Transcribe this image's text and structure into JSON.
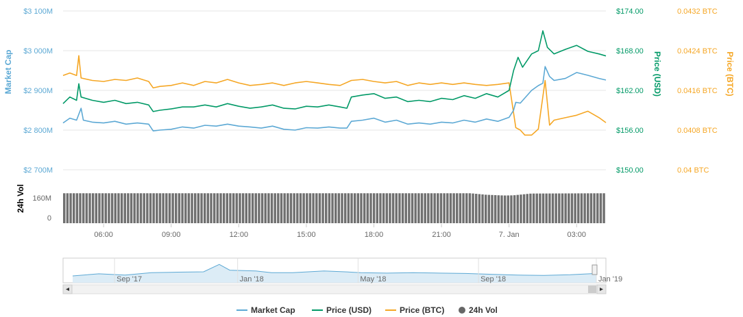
{
  "chart_data": {
    "type": "line",
    "axes": {
      "market_cap": {
        "title": "Market Cap",
        "ticks": [
          "$2 700M",
          "$2 800M",
          "$2 900M",
          "$3 000M",
          "$3 100M"
        ],
        "range": [
          2700,
          3100
        ],
        "color": "#5ba8d4"
      },
      "price_usd": {
        "title": "Price (USD)",
        "ticks": [
          "$150.00",
          "$156.00",
          "$162.00",
          "$168.00",
          "$174.00"
        ],
        "range": [
          150,
          174
        ],
        "color": "#009966"
      },
      "price_btc": {
        "title": "Price (BTC)",
        "ticks": [
          "0.04 BTC",
          "0.0408 BTC",
          "0.0416 BTC",
          "0.0424 BTC",
          "0.0432 BTC"
        ],
        "range": [
          0.04,
          0.0432
        ],
        "color": "#f5a623"
      },
      "volume": {
        "title": "24h Vol",
        "ticks": [
          "0",
          "160M"
        ],
        "range": [
          0,
          320
        ],
        "color": "#666666"
      }
    },
    "x_ticks": [
      "06:00",
      "09:00",
      "12:00",
      "15:00",
      "18:00",
      "21:00",
      "7. Jan",
      "03:00"
    ],
    "x_range": [
      4.2,
      28.3
    ],
    "series": [
      {
        "name": "Market Cap",
        "axis": "market_cap",
        "color": "#5ba8d4",
        "points": [
          [
            4.2,
            2818
          ],
          [
            4.5,
            2830
          ],
          [
            4.8,
            2825
          ],
          [
            5.0,
            2855
          ],
          [
            5.1,
            2825
          ],
          [
            5.5,
            2820
          ],
          [
            6.0,
            2818
          ],
          [
            6.5,
            2822
          ],
          [
            7.0,
            2815
          ],
          [
            7.5,
            2818
          ],
          [
            8.0,
            2815
          ],
          [
            8.2,
            2798
          ],
          [
            8.5,
            2800
          ],
          [
            9.0,
            2802
          ],
          [
            9.5,
            2808
          ],
          [
            10.0,
            2805
          ],
          [
            10.5,
            2812
          ],
          [
            11.0,
            2810
          ],
          [
            11.5,
            2815
          ],
          [
            12.0,
            2810
          ],
          [
            12.5,
            2808
          ],
          [
            13.0,
            2805
          ],
          [
            13.5,
            2810
          ],
          [
            14.0,
            2802
          ],
          [
            14.5,
            2800
          ],
          [
            15.0,
            2806
          ],
          [
            15.5,
            2805
          ],
          [
            16.0,
            2808
          ],
          [
            16.5,
            2805
          ],
          [
            16.8,
            2805
          ],
          [
            17.0,
            2822
          ],
          [
            17.5,
            2825
          ],
          [
            18.0,
            2830
          ],
          [
            18.5,
            2820
          ],
          [
            19.0,
            2825
          ],
          [
            19.5,
            2815
          ],
          [
            20.0,
            2818
          ],
          [
            20.5,
            2815
          ],
          [
            21.0,
            2820
          ],
          [
            21.5,
            2818
          ],
          [
            22.0,
            2825
          ],
          [
            22.5,
            2820
          ],
          [
            23.0,
            2828
          ],
          [
            23.5,
            2822
          ],
          [
            24.0,
            2832
          ],
          [
            24.2,
            2850
          ],
          [
            24.3,
            2870
          ],
          [
            24.5,
            2868
          ],
          [
            25.0,
            2900
          ],
          [
            25.3,
            2912
          ],
          [
            25.5,
            2918
          ],
          [
            25.6,
            2960
          ],
          [
            25.8,
            2935
          ],
          [
            26.0,
            2925
          ],
          [
            26.5,
            2930
          ],
          [
            27.0,
            2945
          ],
          [
            27.5,
            2938
          ],
          [
            28.0,
            2930
          ],
          [
            28.3,
            2926
          ]
        ]
      },
      {
        "name": "Price (USD)",
        "axis": "price_usd",
        "color": "#009966",
        "points": [
          [
            4.2,
            160.0
          ],
          [
            4.5,
            161.0
          ],
          [
            4.8,
            160.5
          ],
          [
            4.9,
            163.0
          ],
          [
            5.0,
            161.0
          ],
          [
            5.5,
            160.5
          ],
          [
            6.0,
            160.2
          ],
          [
            6.5,
            160.5
          ],
          [
            7.0,
            160.0
          ],
          [
            7.5,
            160.2
          ],
          [
            8.0,
            159.8
          ],
          [
            8.2,
            158.8
          ],
          [
            8.5,
            159.0
          ],
          [
            9.0,
            159.2
          ],
          [
            9.5,
            159.5
          ],
          [
            10.0,
            159.5
          ],
          [
            10.5,
            159.8
          ],
          [
            11.0,
            159.5
          ],
          [
            11.5,
            160.0
          ],
          [
            12.0,
            159.6
          ],
          [
            12.5,
            159.3
          ],
          [
            13.0,
            159.5
          ],
          [
            13.5,
            159.8
          ],
          [
            14.0,
            159.3
          ],
          [
            14.5,
            159.2
          ],
          [
            15.0,
            159.6
          ],
          [
            15.5,
            159.5
          ],
          [
            16.0,
            159.8
          ],
          [
            16.5,
            159.5
          ],
          [
            16.8,
            159.3
          ],
          [
            17.0,
            161.0
          ],
          [
            17.5,
            161.3
          ],
          [
            18.0,
            161.5
          ],
          [
            18.5,
            160.8
          ],
          [
            19.0,
            161.0
          ],
          [
            19.5,
            160.3
          ],
          [
            20.0,
            160.5
          ],
          [
            20.5,
            160.3
          ],
          [
            21.0,
            160.8
          ],
          [
            21.5,
            160.6
          ],
          [
            22.0,
            161.2
          ],
          [
            22.5,
            160.8
          ],
          [
            23.0,
            161.5
          ],
          [
            23.5,
            161.0
          ],
          [
            24.0,
            162.0
          ],
          [
            24.2,
            165.0
          ],
          [
            24.4,
            167.0
          ],
          [
            24.6,
            165.5
          ],
          [
            25.0,
            167.5
          ],
          [
            25.3,
            168.0
          ],
          [
            25.5,
            171.0
          ],
          [
            25.7,
            168.5
          ],
          [
            26.0,
            167.5
          ],
          [
            26.5,
            168.2
          ],
          [
            27.0,
            168.8
          ],
          [
            27.5,
            167.9
          ],
          [
            28.0,
            167.5
          ],
          [
            28.3,
            167.2
          ]
        ]
      },
      {
        "name": "Price (BTC)",
        "axis": "price_btc",
        "color": "#f5a623",
        "points": [
          [
            4.2,
            0.0419
          ],
          [
            4.5,
            0.04195
          ],
          [
            4.8,
            0.0419
          ],
          [
            4.9,
            0.0423
          ],
          [
            5.0,
            0.04185
          ],
          [
            5.5,
            0.0418
          ],
          [
            6.0,
            0.04178
          ],
          [
            6.5,
            0.04182
          ],
          [
            7.0,
            0.0418
          ],
          [
            7.5,
            0.04185
          ],
          [
            8.0,
            0.04178
          ],
          [
            8.2,
            0.04165
          ],
          [
            8.5,
            0.04168
          ],
          [
            9.0,
            0.0417
          ],
          [
            9.5,
            0.04175
          ],
          [
            10.0,
            0.0417
          ],
          [
            10.5,
            0.04178
          ],
          [
            11.0,
            0.04175
          ],
          [
            11.5,
            0.04182
          ],
          [
            12.0,
            0.04175
          ],
          [
            12.5,
            0.0417
          ],
          [
            13.0,
            0.04172
          ],
          [
            13.5,
            0.04175
          ],
          [
            14.0,
            0.0417
          ],
          [
            14.5,
            0.04175
          ],
          [
            15.0,
            0.04178
          ],
          [
            15.5,
            0.04175
          ],
          [
            16.0,
            0.04172
          ],
          [
            16.5,
            0.0417
          ],
          [
            17.0,
            0.0418
          ],
          [
            17.5,
            0.04182
          ],
          [
            18.0,
            0.04178
          ],
          [
            18.5,
            0.04175
          ],
          [
            19.0,
            0.04178
          ],
          [
            19.5,
            0.0417
          ],
          [
            20.0,
            0.04175
          ],
          [
            20.5,
            0.04172
          ],
          [
            21.0,
            0.04175
          ],
          [
            21.5,
            0.04172
          ],
          [
            22.0,
            0.04175
          ],
          [
            22.5,
            0.04172
          ],
          [
            23.0,
            0.0417
          ],
          [
            23.5,
            0.04172
          ],
          [
            24.0,
            0.04175
          ],
          [
            24.3,
            0.04085
          ],
          [
            24.5,
            0.0408
          ],
          [
            24.7,
            0.0407
          ],
          [
            25.0,
            0.0407
          ],
          [
            25.3,
            0.04082
          ],
          [
            25.6,
            0.0418
          ],
          [
            25.8,
            0.0409
          ],
          [
            26.0,
            0.041
          ],
          [
            26.5,
            0.04105
          ],
          [
            27.0,
            0.0411
          ],
          [
            27.5,
            0.04118
          ],
          [
            28.0,
            0.04105
          ],
          [
            28.3,
            0.04095
          ]
        ]
      }
    ],
    "volume": {
      "name": "24h Vol",
      "bar_count": 170,
      "points": [
        [
          4.2,
          200
        ],
        [
          22.3,
          200
        ],
        [
          23.0,
          190
        ],
        [
          23.8,
          185
        ],
        [
          24.2,
          186
        ],
        [
          25.0,
          198
        ],
        [
          28.3,
          200
        ]
      ]
    },
    "navigator": {
      "labels": [
        "Sep '17",
        "Jan '18",
        "May '18",
        "Sep '18",
        "Jan '19"
      ],
      "points": [
        [
          0,
          0.25
        ],
        [
          0.05,
          0.38
        ],
        [
          0.1,
          0.3
        ],
        [
          0.15,
          0.45
        ],
        [
          0.2,
          0.48
        ],
        [
          0.25,
          0.5
        ],
        [
          0.28,
          0.95
        ],
        [
          0.3,
          0.6
        ],
        [
          0.35,
          0.55
        ],
        [
          0.38,
          0.45
        ],
        [
          0.42,
          0.45
        ],
        [
          0.45,
          0.5
        ],
        [
          0.48,
          0.55
        ],
        [
          0.52,
          0.5
        ],
        [
          0.55,
          0.45
        ],
        [
          0.6,
          0.42
        ],
        [
          0.65,
          0.45
        ],
        [
          0.7,
          0.42
        ],
        [
          0.75,
          0.4
        ],
        [
          0.8,
          0.35
        ],
        [
          0.85,
          0.3
        ],
        [
          0.9,
          0.28
        ],
        [
          0.95,
          0.32
        ],
        [
          1.0,
          0.4
        ]
      ]
    },
    "legend": [
      {
        "label": "Market Cap",
        "color": "#5ba8d4",
        "kind": "line"
      },
      {
        "label": "Price (USD)",
        "color": "#009966",
        "kind": "line"
      },
      {
        "label": "Price (BTC)",
        "color": "#f5a623",
        "kind": "line"
      },
      {
        "label": "24h Vol",
        "color": "#666666",
        "kind": "dot"
      }
    ]
  }
}
